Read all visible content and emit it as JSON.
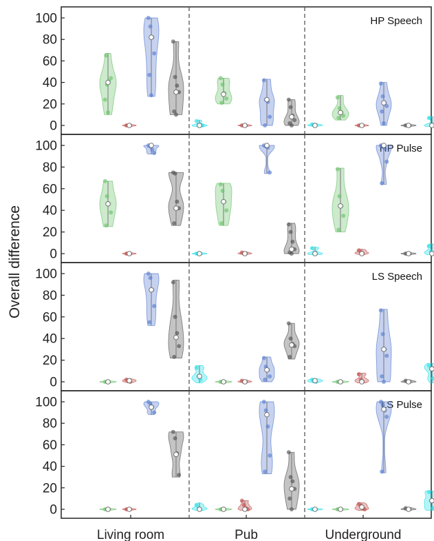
{
  "chart_data": {
    "type": "violin",
    "ylabel": "Overall difference",
    "ylim": [
      -8,
      110
    ],
    "yticks": [
      0,
      20,
      40,
      60,
      80,
      100
    ],
    "groups": [
      "Living room",
      "Pub",
      "Underground"
    ],
    "series_per_group": 5,
    "series_colors": [
      "#6cc36c",
      "#c0504d",
      "#5b7fd0",
      "#555555",
      "#28e0e8"
    ],
    "panels": [
      {
        "title": "HP Speech",
        "violins": [
          [
            {
              "min": 10,
              "max": 67,
              "median": 40,
              "pts": [
                24,
                38,
                41,
                44,
                65,
                12
              ]
            },
            {
              "min": -1,
              "max": 1,
              "median": 0,
              "pts": [
                0,
                0,
                0
              ]
            },
            {
              "min": 27,
              "max": 100,
              "median": 82,
              "pts": [
                100,
                92,
                82,
                67,
                47,
                28
              ]
            },
            {
              "min": 10,
              "max": 78,
              "median": 31,
              "pts": [
                78,
                45,
                37,
                31,
                13,
                10
              ]
            },
            {
              "min": -1,
              "max": 5,
              "median": 0,
              "pts": [
                4,
                0,
                0,
                0
              ]
            }
          ],
          [
            {
              "min": 20,
              "max": 44,
              "median": 29,
              "pts": [
                44,
                38,
                30,
                25,
                21
              ]
            },
            {
              "min": -1,
              "max": 1,
              "median": 0,
              "pts": [
                0,
                0,
                0
              ]
            },
            {
              "min": 0,
              "max": 43,
              "median": 24,
              "pts": [
                42,
                24,
                22,
                8,
                0
              ]
            },
            {
              "min": 0,
              "max": 24,
              "median": 8,
              "pts": [
                24,
                17,
                9,
                5,
                2,
                0
              ]
            },
            {
              "min": -1,
              "max": 2,
              "median": 0,
              "pts": [
                1,
                0,
                0
              ]
            }
          ],
          [
            {
              "min": 5,
              "max": 28,
              "median": 12,
              "pts": [
                26,
                16,
                12,
                9,
                7
              ]
            },
            {
              "min": -1,
              "max": 1,
              "median": 0,
              "pts": [
                0,
                0,
                0
              ]
            },
            {
              "min": 0,
              "max": 40,
              "median": 21,
              "pts": [
                39,
                27,
                21,
                18,
                13,
                2
              ]
            },
            {
              "min": -1,
              "max": 1,
              "median": 0,
              "pts": [
                0,
                0,
                0
              ]
            },
            {
              "min": -1,
              "max": 8,
              "median": 0,
              "pts": [
                7,
                0,
                0
              ]
            }
          ]
        ]
      },
      {
        "title": "HP Pulse",
        "violins": [
          [
            {
              "min": 25,
              "max": 67,
              "median": 46,
              "pts": [
                67,
                53,
                46,
                38,
                26
              ]
            },
            {
              "min": -1,
              "max": 1,
              "median": 0,
              "pts": [
                0,
                0,
                0
              ]
            },
            {
              "min": 92,
              "max": 100,
              "median": 100,
              "pts": [
                100,
                99,
                96,
                93
              ]
            },
            {
              "min": 26,
              "max": 75,
              "median": 42,
              "pts": [
                75,
                74,
                48,
                42,
                28
              ]
            },
            {
              "min": -1,
              "max": 1,
              "median": 0,
              "pts": [
                0,
                0,
                0
              ]
            }
          ],
          [
            {
              "min": 26,
              "max": 65,
              "median": 48,
              "pts": [
                64,
                58,
                48,
                40,
                28
              ]
            },
            {
              "min": -1,
              "max": 2,
              "median": 0,
              "pts": [
                1,
                0,
                0
              ]
            },
            {
              "min": 74,
              "max": 100,
              "median": 100,
              "pts": [
                100,
                99,
                98,
                75
              ]
            },
            {
              "min": 0,
              "max": 28,
              "median": 4,
              "pts": [
                27,
                20,
                11,
                4,
                1,
                0
              ]
            },
            {
              "min": -1,
              "max": 6,
              "median": 0,
              "pts": [
                5,
                0,
                0
              ]
            }
          ],
          [
            {
              "min": 20,
              "max": 79,
              "median": 44,
              "pts": [
                78,
                53,
                44,
                35,
                22
              ]
            },
            {
              "min": -1,
              "max": 4,
              "median": 0,
              "pts": [
                3,
                1,
                0
              ]
            },
            {
              "min": 64,
              "max": 100,
              "median": 100,
              "pts": [
                100,
                99,
                97,
                85,
                65
              ]
            },
            {
              "min": -1,
              "max": 1,
              "median": 0,
              "pts": [
                0,
                0,
                0
              ]
            },
            {
              "min": -1,
              "max": 9,
              "median": 0,
              "pts": [
                7,
                2,
                0
              ]
            }
          ]
        ]
      },
      {
        "title": "LS Speech",
        "violins": [
          [
            {
              "min": -1,
              "max": 1,
              "median": 0,
              "pts": [
                0,
                0,
                0
              ]
            },
            {
              "min": -1,
              "max": 3,
              "median": 1,
              "pts": [
                2,
                1,
                0
              ]
            },
            {
              "min": 52,
              "max": 100,
              "median": 85,
              "pts": [
                100,
                96,
                85,
                70,
                55
              ]
            },
            {
              "min": 22,
              "max": 94,
              "median": 41,
              "pts": [
                92,
                60,
                45,
                33,
                23
              ]
            },
            {
              "min": -1,
              "max": 15,
              "median": 5,
              "pts": [
                13,
                5,
                2
              ]
            }
          ],
          [
            {
              "min": -1,
              "max": 1,
              "median": 0,
              "pts": [
                0,
                0,
                0
              ]
            },
            {
              "min": -1,
              "max": 2,
              "median": 0,
              "pts": [
                1,
                0,
                0
              ]
            },
            {
              "min": 0,
              "max": 23,
              "median": 11,
              "pts": [
                22,
                14,
                11,
                5,
                2
              ]
            },
            {
              "min": 21,
              "max": 54,
              "median": 34,
              "pts": [
                54,
                40,
                35,
                33,
                23
              ]
            },
            {
              "min": -1,
              "max": 3,
              "median": 1,
              "pts": [
                2,
                1,
                0
              ]
            }
          ],
          [
            {
              "min": -1,
              "max": 1,
              "median": 0,
              "pts": [
                0,
                0,
                0
              ]
            },
            {
              "min": -1,
              "max": 8,
              "median": 0,
              "pts": [
                7,
                2,
                0
              ]
            },
            {
              "min": 0,
              "max": 67,
              "median": 30,
              "pts": [
                66,
                44,
                30,
                24,
                5,
                0
              ]
            },
            {
              "min": -1,
              "max": 2,
              "median": 0,
              "pts": [
                1,
                0,
                0
              ]
            },
            {
              "min": -1,
              "max": 17,
              "median": 12,
              "pts": [
                15,
                12,
                3
              ]
            }
          ]
        ]
      },
      {
        "title": "LS Pulse",
        "violins": [
          [
            {
              "min": -1,
              "max": 1,
              "median": 0,
              "pts": [
                0,
                0,
                0
              ]
            },
            {
              "min": -1,
              "max": 1,
              "median": 0,
              "pts": [
                0,
                0,
                0
              ]
            },
            {
              "min": 88,
              "max": 100,
              "median": 95,
              "pts": [
                100,
                98,
                95,
                90
              ]
            },
            {
              "min": 30,
              "max": 72,
              "median": 51,
              "pts": [
                72,
                66,
                52,
                32
              ]
            },
            {
              "min": -1,
              "max": 6,
              "median": 0,
              "pts": [
                4,
                1,
                0
              ]
            }
          ],
          [
            {
              "min": -1,
              "max": 1,
              "median": 0,
              "pts": [
                0,
                0,
                0
              ]
            },
            {
              "min": -1,
              "max": 8,
              "median": 0,
              "pts": [
                8,
                4,
                1,
                0
              ]
            },
            {
              "min": 33,
              "max": 100,
              "median": 88,
              "pts": [
                100,
                92,
                77,
                50,
                35
              ]
            },
            {
              "min": 0,
              "max": 53,
              "median": 19,
              "pts": [
                53,
                30,
                26,
                19,
                10,
                0
              ]
            },
            {
              "min": -1,
              "max": 1,
              "median": 0,
              "pts": [
                0,
                0,
                0
              ]
            }
          ],
          [
            {
              "min": -1,
              "max": 1,
              "median": 0,
              "pts": [
                0,
                0,
                0
              ]
            },
            {
              "min": -1,
              "max": 6,
              "median": 2,
              "pts": [
                5,
                3,
                1,
                0
              ]
            },
            {
              "min": 34,
              "max": 100,
              "median": 93,
              "pts": [
                100,
                97,
                92,
                86,
                35
              ]
            },
            {
              "min": -1,
              "max": 2,
              "median": 0,
              "pts": [
                1,
                0,
                0
              ]
            },
            {
              "min": -1,
              "max": 17,
              "median": 8,
              "pts": [
                16,
                8,
                1
              ]
            }
          ]
        ]
      }
    ]
  }
}
